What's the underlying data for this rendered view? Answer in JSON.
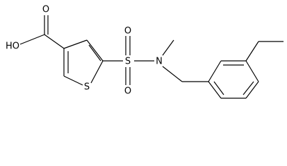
{
  "atoms": [
    {
      "label": "HO"
    },
    {
      "label": "O"
    },
    {
      "label": "S"
    },
    {
      "label": "S"
    },
    {
      "label": "O"
    },
    {
      "label": "O"
    },
    {
      "label": "N"
    }
  ]
}
